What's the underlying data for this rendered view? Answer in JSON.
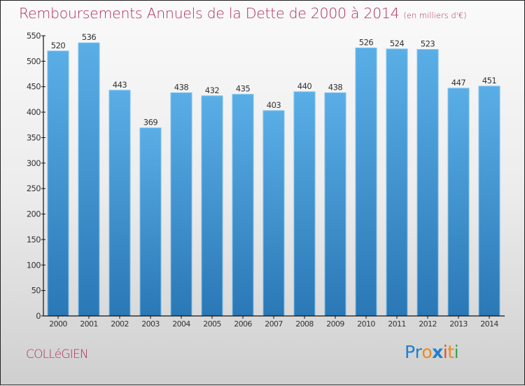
{
  "title": {
    "main": "Remboursements Annuels de la Dette de 2000 à 2014",
    "unit": "(en milliers d'€)"
  },
  "commune": "COLLéGIEN",
  "logo": {
    "letters": [
      {
        "char": "P",
        "color": "#1f7fd0"
      },
      {
        "char": "r",
        "color": "#1f7fd0"
      },
      {
        "char": "o",
        "color": "#f08a1c"
      },
      {
        "char": "x",
        "color": "#1f7fd0"
      },
      {
        "char": "i",
        "color": "#e8501c"
      },
      {
        "char": "t",
        "color": "#f08a1c"
      },
      {
        "char": "i",
        "color": "#3aa64a"
      }
    ]
  },
  "colors": {
    "title": "#b03060",
    "bar_top": "#5aaee6",
    "bar_bottom": "#2a78b6",
    "axis": "#111111"
  },
  "chart_data": {
    "type": "bar",
    "title": "Remboursements Annuels de la Dette de 2000 à 2014",
    "subtitle": "(en milliers d'€)",
    "xlabel": "",
    "ylabel": "",
    "categories": [
      "2000",
      "2001",
      "2002",
      "2003",
      "2004",
      "2005",
      "2006",
      "2007",
      "2008",
      "2009",
      "2010",
      "2011",
      "2012",
      "2013",
      "2014"
    ],
    "values": [
      520,
      536,
      443,
      369,
      438,
      432,
      435,
      403,
      440,
      438,
      526,
      524,
      523,
      447,
      451
    ],
    "ylim": [
      0,
      550
    ],
    "yticks": [
      0,
      50,
      100,
      150,
      200,
      250,
      300,
      350,
      400,
      450,
      500,
      550
    ],
    "grid": false,
    "legend": "none",
    "data_labels": true
  }
}
